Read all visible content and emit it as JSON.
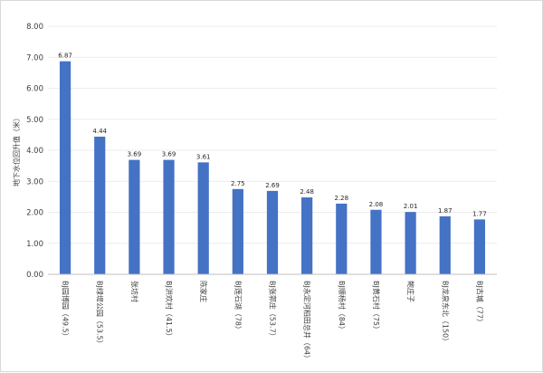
{
  "chart_data": {
    "type": "bar",
    "ylabel": "地下水位回升值（米）",
    "ylim": [
      0,
      8
    ],
    "yticks": [
      "0.00",
      "1.00",
      "2.00",
      "3.00",
      "4.00",
      "5.00",
      "6.00",
      "7.00",
      "8.00"
    ],
    "grid": true,
    "bar_color": "#4472c4",
    "categories": [
      "BJ园博园（49.5）",
      "BJ绿堤公园（53.5）",
      "张坊村",
      "BJ洪欢村（41.5）",
      "陈家庄",
      "BJ莲石湖（78）",
      "BJ张郭庄（53.7）",
      "BJ永定河稻田总井（64）",
      "BJ顺杨村（84）",
      "BJ黄石村（75）",
      "鲍庄子",
      "BJ龙泉东北（150）",
      "BJ古城（77）"
    ],
    "values": [
      6.87,
      4.44,
      3.69,
      3.69,
      3.61,
      2.75,
      2.69,
      2.48,
      2.28,
      2.08,
      2.01,
      1.87,
      1.77
    ],
    "value_labels": [
      "6.87",
      "4.44",
      "3.69",
      "3.69",
      "3.61",
      "2.75",
      "2.69",
      "2.48",
      "2.28",
      "2.08",
      "2.01",
      "1.87",
      "1.77"
    ]
  }
}
